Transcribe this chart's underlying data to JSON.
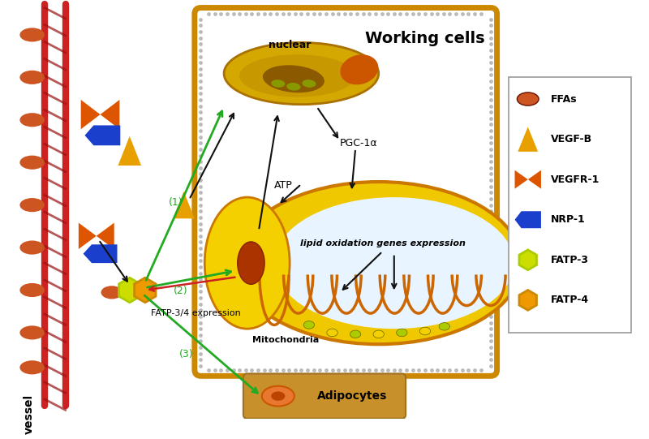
{
  "bg_color": "#ffffff",
  "vessel_color": "#cc2222",
  "cell_border_color": "#cc8800",
  "ffa_color": "#cc5522",
  "vegfb_color": "#e8a000",
  "vegfr1_color": "#dd5500",
  "nrp1_color": "#1a3fcc",
  "fatp3_color": "#ccdd00",
  "fatp4_color": "#ee9900",
  "arrow_black": "#111111",
  "arrow_green": "#22aa22",
  "arrow_red": "#cc2222",
  "label_vessel": "vessel",
  "label_working": "Working cells",
  "label_nuclear": "nuclear",
  "label_pgc1a": "PGC-1α",
  "label_atp": "ATP",
  "label_lipid": "lipid oxidation genes expression",
  "label_mito": "Mitochondria",
  "label_fatp": "FATP-3/4 expression",
  "label_adipocytes": "Adipocytes"
}
